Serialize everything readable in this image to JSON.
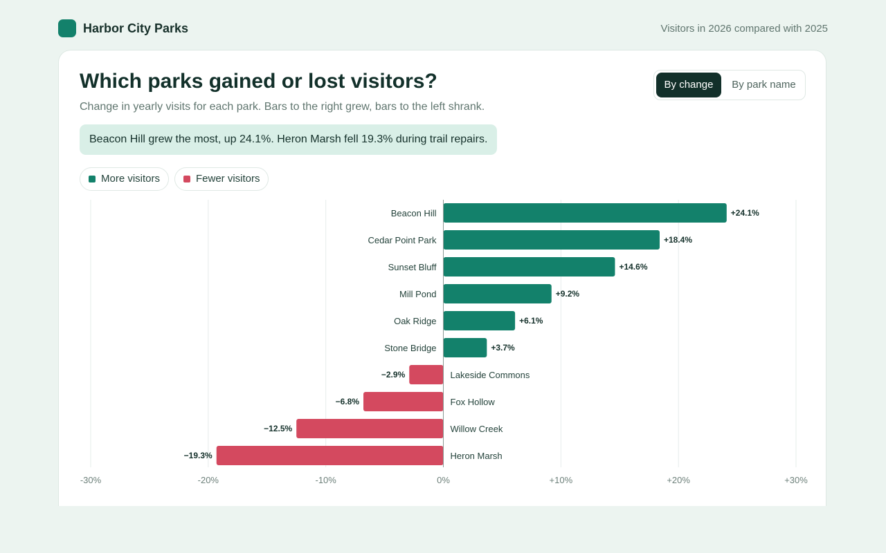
{
  "header": {
    "brand": "Harbor City Parks",
    "caption": "Visitors in 2026 compared with 2025",
    "logo_color": "#13816b"
  },
  "card": {
    "title": "Which parks gained or lost visitors?",
    "subtitle": "Change in yearly visits for each park. Bars to the right grew, bars to the left shrank.",
    "callout": "Beacon Hill grew the most, up 24.1%. Heron Marsh fell 19.3% during trail repairs."
  },
  "sort_toggle": {
    "options": [
      {
        "label": "By change",
        "selected": true
      },
      {
        "label": "By park name",
        "selected": false
      }
    ]
  },
  "legend": {
    "more": {
      "label": "More visitors",
      "color": "#13816b"
    },
    "fewer": {
      "label": "Fewer visitors",
      "color": "#d4495f"
    }
  },
  "chart_data": {
    "type": "bar",
    "orientation": "horizontal",
    "title": "Which parks gained or lost visitors?",
    "categories": [
      "Beacon Hill",
      "Cedar Point Park",
      "Sunset Bluff",
      "Mill Pond",
      "Oak Ridge",
      "Stone Bridge",
      "Lakeside Commons",
      "Fox Hollow",
      "Willow Creek",
      "Heron Marsh"
    ],
    "values": [
      24.1,
      18.4,
      14.6,
      9.2,
      6.1,
      3.7,
      -2.9,
      -6.8,
      -12.5,
      -19.3
    ],
    "value_labels": [
      "+24.1%",
      "+18.4%",
      "+14.6%",
      "+9.2%",
      "+6.1%",
      "+3.7%",
      "−2.9%",
      "−6.8%",
      "−12.5%",
      "−19.3%"
    ],
    "xlim": [
      -30,
      30
    ],
    "xticks": [
      -30,
      -20,
      -10,
      0,
      10,
      20,
      30
    ],
    "xtick_labels": [
      "-30%",
      "-20%",
      "-10%",
      "0%",
      "+10%",
      "+20%",
      "+30%"
    ],
    "grid": true,
    "positive_color": "#13816b",
    "negative_color": "#d4495f"
  }
}
